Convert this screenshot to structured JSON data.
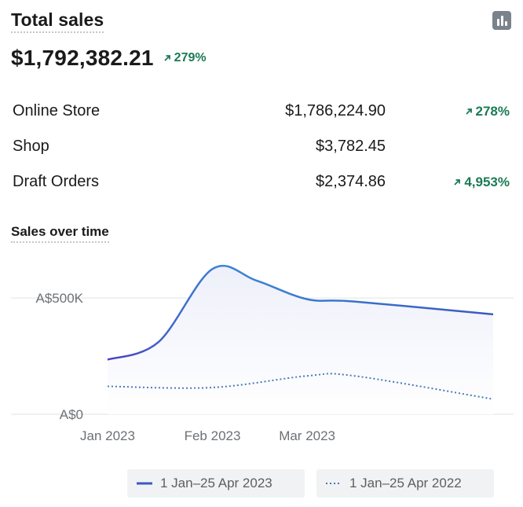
{
  "header": {
    "title": "Total sales",
    "total": "$1,792,382.21",
    "total_change": "279%"
  },
  "breakdown": [
    {
      "channel": "Online Store",
      "amount": "$1,786,224.90",
      "change": "278%"
    },
    {
      "channel": "Shop",
      "amount": "$3,782.45",
      "change": ""
    },
    {
      "channel": "Draft Orders",
      "amount": "$2,374.86",
      "change": "4,953%"
    }
  ],
  "chart_title": "Sales over time",
  "colors": {
    "positive": "#1b7a55",
    "series_current": "#3a5bbf",
    "series_previous": "#4a79b8",
    "area_fill": "#eef0fa"
  },
  "icons": {
    "chart_toggle": "bar-chart-icon",
    "trend": "arrow-up-right-icon"
  },
  "chart_data": {
    "type": "line",
    "title": "Sales over time",
    "xlabel": "",
    "ylabel": "",
    "x_ticks": [
      "Jan 2023",
      "Feb 2023",
      "Mar 2023"
    ],
    "y_ticks": [
      "A$0",
      "A$500K"
    ],
    "ylim": [
      0,
      700000
    ],
    "grid": true,
    "legend_position": "bottom",
    "series": [
      {
        "name": "1 Jan–25 Apr 2023",
        "style": "solid",
        "x": [
          "2023-01-01",
          "2023-01-16",
          "2023-02-01",
          "2023-02-14",
          "2023-03-01",
          "2023-03-15",
          "2023-04-25"
        ],
        "values": [
          235000,
          310000,
          625000,
          575000,
          495000,
          485000,
          430000
        ]
      },
      {
        "name": "1 Jan–25 Apr 2022",
        "style": "dotted",
        "x": [
          "2023-01-01",
          "2023-02-01",
          "2023-03-01",
          "2023-03-15",
          "2023-04-25"
        ],
        "values": [
          120000,
          115000,
          165000,
          165000,
          65000
        ]
      }
    ]
  }
}
